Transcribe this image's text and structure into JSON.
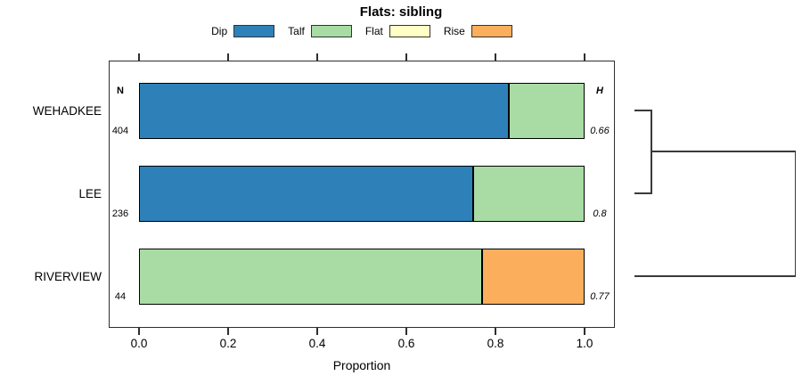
{
  "title": "Flats: sibling",
  "xlabel": "Proportion",
  "n_header": "N",
  "h_header": "H",
  "chart_data": {
    "type": "bar",
    "orientation": "horizontal",
    "stacked": true,
    "title": "Flats: sibling",
    "xlabel": "Proportion",
    "xlim": [
      0,
      1
    ],
    "x_ticks": [
      0.0,
      0.2,
      0.4,
      0.6,
      0.8,
      1.0
    ],
    "x_tick_labels": [
      "0.0",
      "0.2",
      "0.4",
      "0.6",
      "0.8",
      "1.0"
    ],
    "legend_position": "top",
    "grid": false,
    "series": [
      {
        "name": "Dip",
        "color": "#2E81B8"
      },
      {
        "name": "Talf",
        "color": "#A9DCA4"
      },
      {
        "name": "Flat",
        "color": "#FFFFC5"
      },
      {
        "name": "Rise",
        "color": "#FBAE5C"
      }
    ],
    "rows": [
      {
        "label": "WEHADKEE",
        "n": "404",
        "h": "0.66",
        "values": {
          "Dip": 0.83,
          "Talf": 0.17,
          "Flat": 0,
          "Rise": 0
        }
      },
      {
        "label": "LEE",
        "n": "236",
        "h": "0.8",
        "values": {
          "Dip": 0.75,
          "Talf": 0.25,
          "Flat": 0,
          "Rise": 0
        }
      },
      {
        "label": "RIVERVIEW",
        "n": "44",
        "h": "0.77",
        "values": {
          "Dip": 0,
          "Talf": 0.77,
          "Flat": 0,
          "Rise": 0.23
        }
      }
    ],
    "dendrogram": {
      "position": "right-margin",
      "joins": [
        {
          "members": [
            "WEHADKEE",
            "LEE"
          ]
        },
        {
          "members": [
            [
              "WEHADKEE",
              "LEE"
            ],
            "RIVERVIEW"
          ]
        }
      ]
    }
  }
}
